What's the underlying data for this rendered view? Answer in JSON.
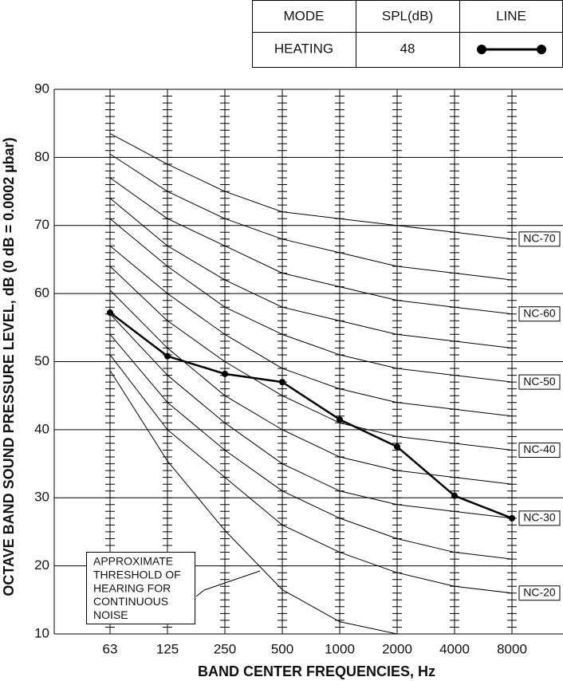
{
  "chart_data": {
    "type": "line",
    "x_label": "BAND CENTER FREQUENCIES, Hz",
    "y_label": "OCTAVE BAND SOUND PRESSURE LEVEL, dB (0 dB = 0.0002 µbar)",
    "categories": [
      "63",
      "125",
      "250",
      "500",
      "1000",
      "2000",
      "4000",
      "8000"
    ],
    "ylim": [
      10,
      90
    ],
    "yticks": [
      10,
      20,
      30,
      40,
      50,
      60,
      70,
      80,
      90
    ],
    "grid": true,
    "legend_table": {
      "headers": [
        "MODE",
        "SPL(dB)",
        "LINE"
      ]
    },
    "series": [
      {
        "name": "HEATING",
        "spl": 48,
        "color": "#000000",
        "markers": true,
        "values": [
          57.2,
          50.8,
          48.2,
          47.0,
          41.5,
          37.5,
          30.3,
          27.0
        ]
      },
      {
        "name": "NC-70",
        "color": "#000000",
        "values": [
          83.5,
          79,
          75,
          72,
          71,
          70,
          69,
          68
        ]
      },
      {
        "color": "#000000",
        "values": [
          80.5,
          75,
          71,
          68,
          66,
          64,
          63,
          62
        ]
      },
      {
        "name": "NC-60",
        "color": "#000000",
        "values": [
          77,
          71,
          67,
          63,
          61,
          59,
          58,
          57
        ]
      },
      {
        "color": "#000000",
        "values": [
          74,
          67,
          62,
          58,
          56,
          54,
          53,
          52
        ]
      },
      {
        "name": "NC-50",
        "color": "#000000",
        "values": [
          71,
          64,
          58,
          54,
          51,
          49,
          48,
          47
        ]
      },
      {
        "color": "#000000",
        "values": [
          67,
          60,
          54,
          49,
          46,
          44,
          43,
          42
        ]
      },
      {
        "name": "NC-40",
        "color": "#000000",
        "values": [
          64,
          56,
          50,
          45,
          41,
          39,
          38,
          37
        ]
      },
      {
        "color": "#000000",
        "values": [
          60.5,
          52,
          45,
          40,
          36,
          34,
          33,
          32
        ]
      },
      {
        "name": "NC-30",
        "color": "#000000",
        "values": [
          57,
          48,
          41,
          35,
          31,
          29,
          28,
          27
        ]
      },
      {
        "color": "#000000",
        "values": [
          54,
          44,
          37,
          31,
          27,
          24,
          22,
          21
        ]
      },
      {
        "name": "NC-20",
        "color": "#000000",
        "values": [
          51,
          40,
          33,
          26,
          22,
          19,
          17,
          16
        ]
      },
      {
        "color": "#000000",
        "values": [
          48.7,
          35.4,
          25.2,
          16.5,
          11.8,
          10,
          null,
          null
        ]
      }
    ],
    "annotation": {
      "text_lines": [
        "APPROXIMATE",
        "THRESHOLD OF",
        "HEARING FOR",
        "CONTINUOUS",
        "NOISE"
      ]
    }
  }
}
